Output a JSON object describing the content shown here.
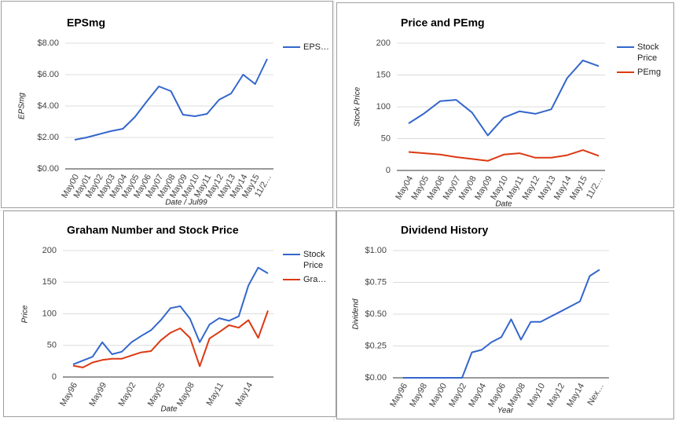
{
  "chart_data": [
    {
      "type": "line",
      "title": "EPSmg",
      "x_label": "Date / Jul99",
      "y_label": "EPSmg",
      "categories": [
        "May00",
        "May01",
        "May02",
        "May03",
        "May04",
        "May05",
        "May06",
        "May07",
        "May08",
        "May09",
        "May10",
        "May11",
        "May12",
        "May13",
        "May14",
        "May15",
        "11/2…"
      ],
      "series": [
        {
          "name": "EPS…",
          "color": "#3366cc",
          "values": [
            1.85,
            2.0,
            2.2,
            2.4,
            2.55,
            3.3,
            4.3,
            5.25,
            4.95,
            3.45,
            3.35,
            3.5,
            4.4,
            4.8,
            6.0,
            5.4,
            7.0
          ]
        }
      ],
      "ylim": [
        0,
        8
      ],
      "yticks": [
        {
          "value": 0,
          "label": "$0.00"
        },
        {
          "value": 2,
          "label": "$2.00"
        },
        {
          "value": 4,
          "label": "$4.00"
        },
        {
          "value": 6,
          "label": "$6.00"
        },
        {
          "value": 8,
          "label": "$8.00"
        }
      ],
      "grid": true,
      "legend": "right"
    },
    {
      "type": "line",
      "title": "Price and PEmg",
      "x_label": "Date",
      "y_label": "Stock Price",
      "categories": [
        "May04",
        "May05",
        "May06",
        "May07",
        "May08",
        "May09",
        "May10",
        "May11",
        "May12",
        "May13",
        "May14",
        "May15",
        "11/2…"
      ],
      "series": [
        {
          "name": "Stock Price",
          "color": "#3366cc",
          "values": [
            74,
            90,
            109,
            111,
            91,
            55,
            83,
            93,
            89,
            96,
            145,
            173,
            164
          ]
        },
        {
          "name": "PEmg",
          "color": "#dc3912",
          "values": [
            29,
            27,
            25,
            21,
            18,
            15,
            25,
            27,
            20,
            20,
            24,
            32,
            23
          ]
        }
      ],
      "ylim": [
        0,
        200
      ],
      "yticks": [
        0,
        50,
        100,
        150,
        200
      ],
      "grid": true,
      "legend": "right"
    },
    {
      "type": "line",
      "title": "Graham Number and Stock Price",
      "x_label": "Date",
      "y_label": "Price",
      "categories": [
        "May96",
        null,
        null,
        "May99",
        null,
        null,
        "May02",
        null,
        null,
        "May05",
        null,
        null,
        "May08",
        null,
        null,
        "May11",
        null,
        null,
        "May14",
        null,
        null
      ],
      "series": [
        {
          "name": "Stock Price",
          "color": "#3366cc",
          "values": [
            20,
            26,
            32,
            55,
            36,
            40,
            55,
            65,
            74,
            90,
            109,
            112,
            92,
            55,
            83,
            93,
            89,
            96,
            145,
            173,
            164
          ]
        },
        {
          "name": "Gra…",
          "color": "#dc3912",
          "values": [
            18,
            15,
            23,
            27,
            29,
            29,
            34,
            39,
            41,
            58,
            70,
            77,
            62,
            17,
            61,
            71,
            82,
            78,
            90,
            62,
            105
          ]
        }
      ],
      "ylim": [
        0,
        200
      ],
      "yticks": [
        0,
        50,
        100,
        150,
        200
      ],
      "grid": true,
      "legend": "right"
    },
    {
      "type": "line",
      "title": "Dividend History",
      "x_label": "Year",
      "y_label": "Dividend",
      "categories": [
        "May96",
        null,
        "May98",
        null,
        "May00",
        null,
        "May02",
        null,
        "May04",
        null,
        "May06",
        null,
        "May08",
        null,
        "May10",
        null,
        "May12",
        null,
        "May14",
        null,
        "Nex…"
      ],
      "series": [
        {
          "name": "Dividend",
          "color": "#3366cc",
          "values": [
            0,
            0,
            0,
            0,
            0,
            0,
            0,
            0.2,
            0.22,
            0.28,
            0.32,
            0.46,
            0.3,
            0.44,
            0.44,
            0.48,
            0.52,
            0.56,
            0.6,
            0.8,
            0.85
          ]
        }
      ],
      "ylim": [
        0,
        1
      ],
      "yticks": [
        {
          "value": 0,
          "label": "$0.00"
        },
        {
          "value": 0.25,
          "label": "$0.25"
        },
        {
          "value": 0.5,
          "label": "$0.50"
        },
        {
          "value": 0.75,
          "label": "$0.75"
        },
        {
          "value": 1,
          "label": "$1.00"
        }
      ],
      "grid": true,
      "legend": "none"
    }
  ]
}
